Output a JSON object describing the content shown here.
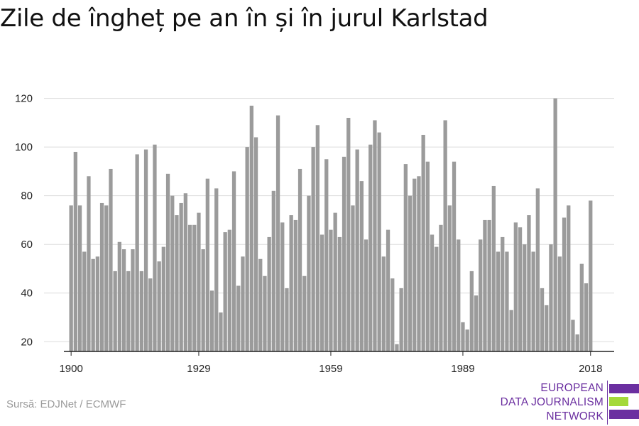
{
  "title": "Zile de îngheț pe an în și în jurul Karlstad",
  "source": "Sursă: EDJNet / ECMWF",
  "logo": {
    "lines": [
      "EUROPEAN",
      "DATA JOURNALISM",
      "NETWORK"
    ],
    "colors": [
      "#6b2fa0",
      "#a4d93a",
      "#6b2fa0"
    ]
  },
  "chart_data": {
    "type": "bar",
    "title": "Zile de îngheț pe an în și în jurul Karlstad",
    "xlabel": "",
    "ylabel": "",
    "start_year": 1900,
    "x_ticks": [
      "1900",
      "1929",
      "1959",
      "1989",
      "2018"
    ],
    "y_ticks": [
      20,
      40,
      60,
      80,
      100,
      120
    ],
    "ylim": [
      16,
      126
    ],
    "bar_color": "#9b9b9b",
    "values": [
      76,
      98,
      76,
      57,
      88,
      54,
      55,
      77,
      76,
      91,
      49,
      61,
      58,
      49,
      58,
      97,
      49,
      99,
      46,
      101,
      53,
      59,
      89,
      80,
      72,
      77,
      81,
      68,
      68,
      73,
      58,
      87,
      41,
      83,
      32,
      65,
      66,
      90,
      43,
      55,
      100,
      117,
      104,
      54,
      47,
      63,
      82,
      113,
      69,
      42,
      72,
      70,
      91,
      47,
      80,
      100,
      109,
      64,
      95,
      66,
      73,
      63,
      96,
      112,
      76,
      99,
      86,
      62,
      101,
      111,
      106,
      55,
      66,
      46,
      19,
      42,
      93,
      80,
      87,
      88,
      105,
      94,
      64,
      59,
      68,
      111,
      76,
      94,
      62,
      28,
      25,
      49,
      39,
      62,
      70,
      70,
      84,
      57,
      63,
      57,
      33,
      69,
      67,
      60,
      72,
      57,
      83,
      42,
      35,
      60,
      120,
      55,
      71,
      76,
      29,
      23,
      52,
      44,
      78
    ]
  }
}
